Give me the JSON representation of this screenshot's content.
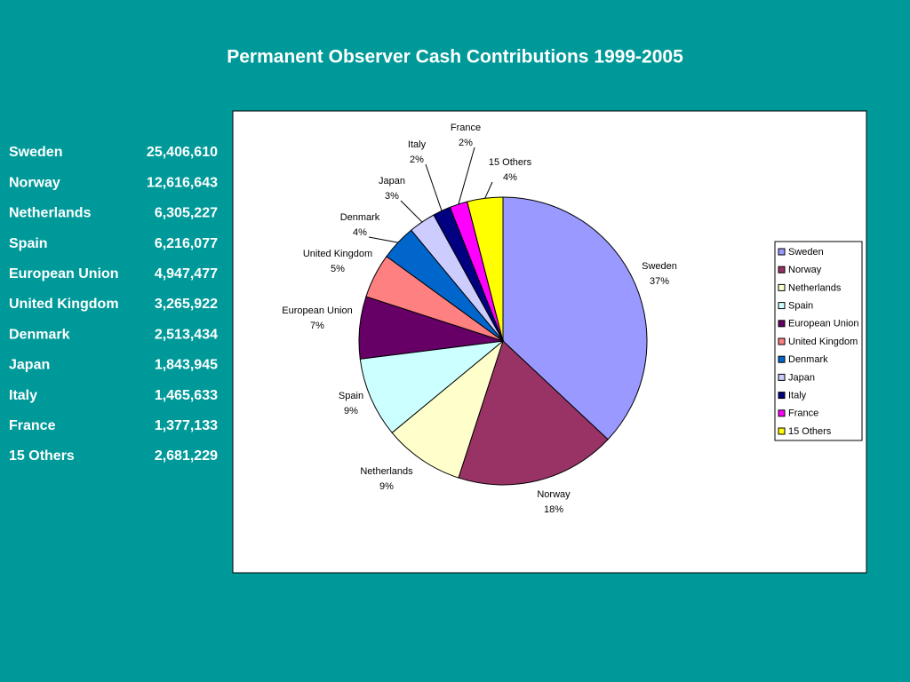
{
  "title": "Permanent Observer Cash Contributions 1999-2005",
  "table": {
    "rows": [
      [
        "Sweden",
        "25,406,610"
      ],
      [
        "Norway",
        "12,616,643"
      ],
      [
        "Netherlands",
        "6,305,227"
      ],
      [
        "Spain",
        "6,216,077"
      ],
      [
        "European Union",
        "4,947,477"
      ],
      [
        "United Kingdom",
        "3,265,922"
      ],
      [
        "Denmark",
        "2,513,434"
      ],
      [
        "Japan",
        "1,843,945"
      ],
      [
        "Italy",
        "1,465,633"
      ],
      [
        "France",
        "1,377,133"
      ],
      [
        "15 Others",
        "2,681,229"
      ]
    ]
  },
  "chart_data": {
    "type": "pie",
    "categories": [
      "Sweden",
      "Norway",
      "Netherlands",
      "Spain",
      "European Union",
      "United Kingdom",
      "Denmark",
      "Japan",
      "Italy",
      "France",
      "15 Others"
    ],
    "values": [
      37,
      18,
      9,
      9,
      7,
      5,
      4,
      3,
      2,
      2,
      4
    ],
    "value_labels": [
      "37%",
      "18%",
      "9%",
      "9%",
      "7%",
      "5%",
      "4%",
      "3%",
      "2%",
      "2%",
      "4%"
    ],
    "colors": [
      "#9999ff",
      "#993366",
      "#ffffcc",
      "#ccffff",
      "#660066",
      "#ff8080",
      "#0066cc",
      "#ccccff",
      "#000080",
      "#ff00ff",
      "#ffff00"
    ],
    "legend": "right"
  }
}
